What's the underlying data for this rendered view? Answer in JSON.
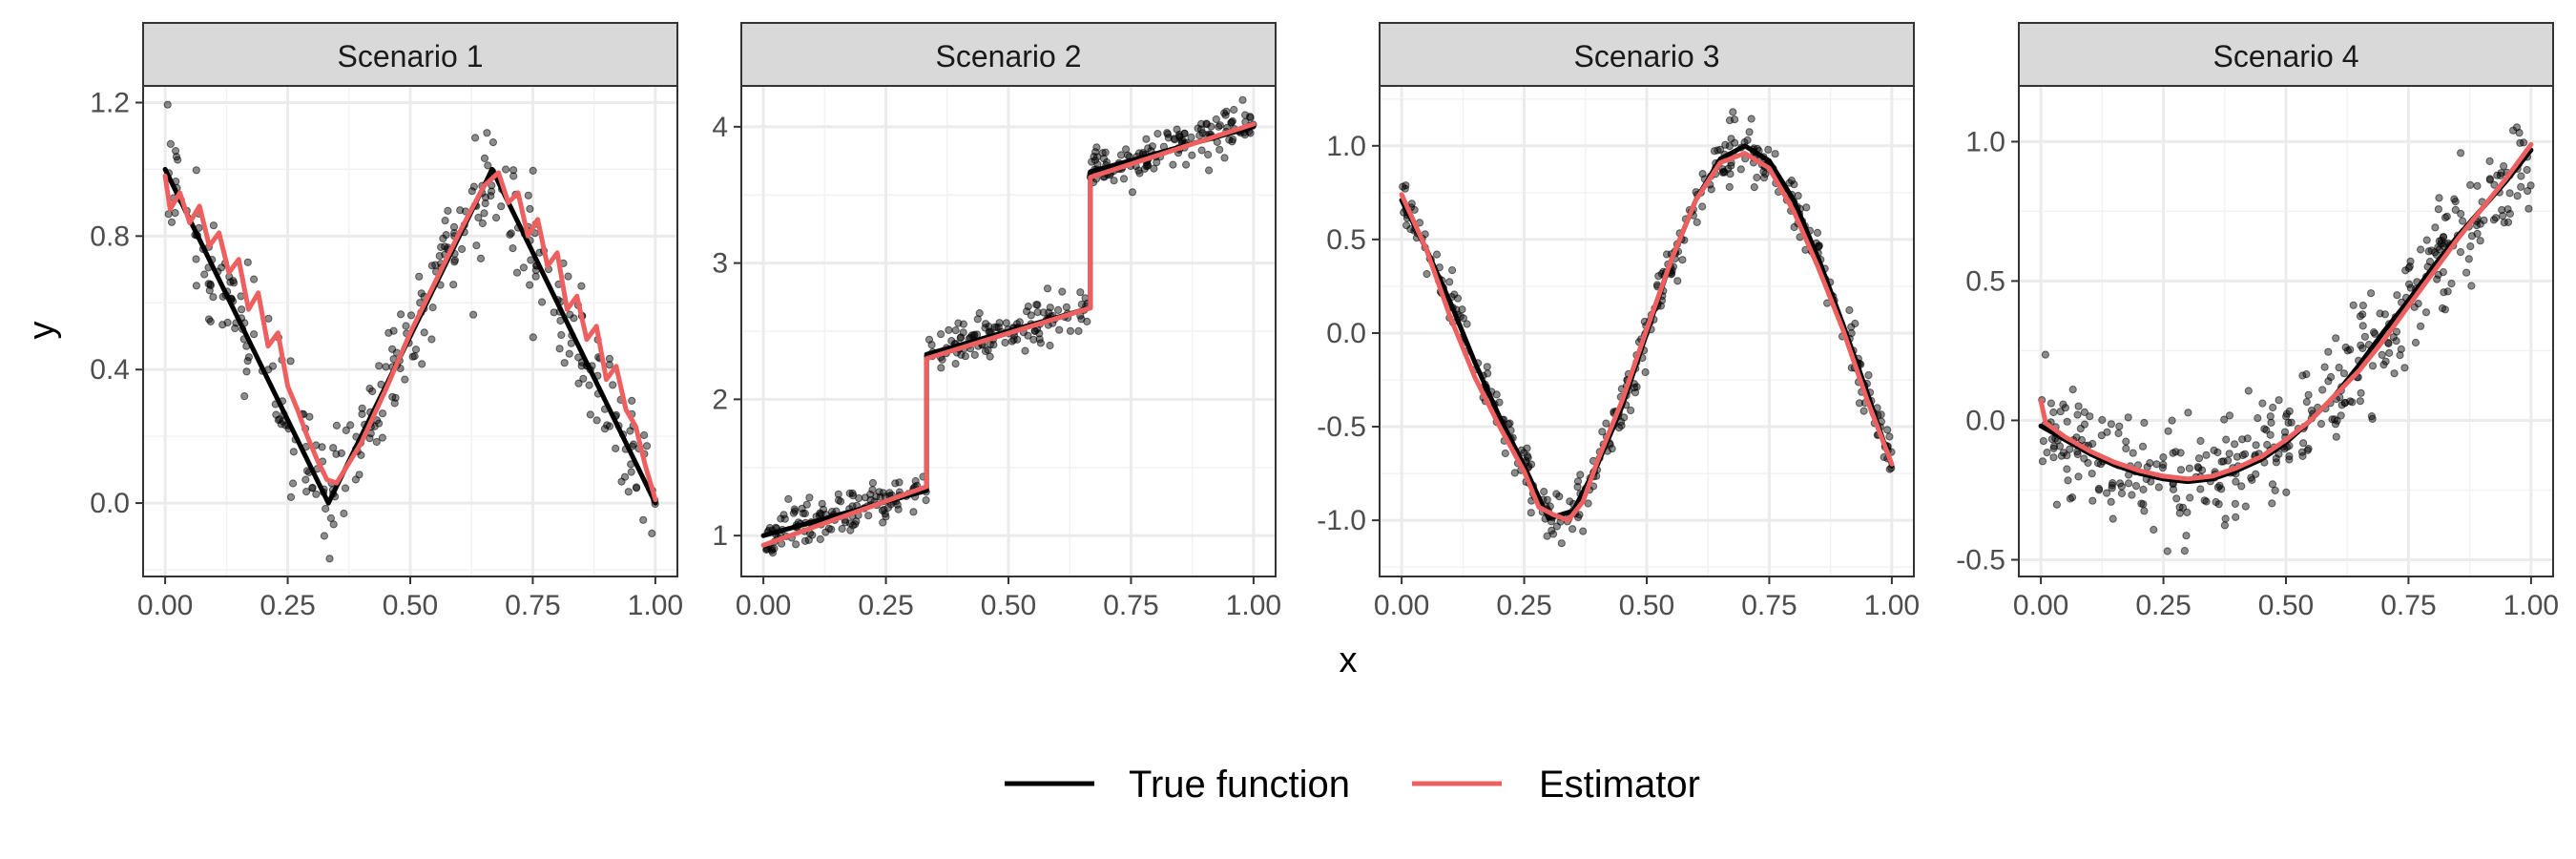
{
  "colors": {
    "true_function": "#000000",
    "estimator": "#EE6060",
    "points": "#000000",
    "strip_fill": "#D9D9D9",
    "grid_major": "#EBEBEB",
    "panel_border": "#333333"
  },
  "chart_data": {
    "type": "line",
    "xlabel": "x",
    "ylabel": "y",
    "legend": {
      "position": "bottom",
      "entries": [
        {
          "label": "True function",
          "color": "#000000"
        },
        {
          "label": "Estimator",
          "color": "#EE6060"
        }
      ]
    },
    "grid": true,
    "panels": [
      {
        "strip": "Scenario 1",
        "xlim": [
          -0.045,
          1.045
        ],
        "ylim": [
          -0.22,
          1.25
        ],
        "xticks": [
          0,
          0.25,
          0.5,
          0.75,
          1
        ],
        "xtick_labels": [
          "0.00",
          "0.25",
          "0.50",
          "0.75",
          "1.00"
        ],
        "yticks": [
          0,
          0.4,
          0.8,
          1.2
        ],
        "ytick_labels": [
          "0.0",
          "0.4",
          "0.8",
          "1.2"
        ],
        "points": {
          "n": 340,
          "noise_sd": 0.085,
          "seed": 11
        },
        "series": [
          {
            "name": "True function",
            "x": [
              0,
              0.333,
              0.667,
              1
            ],
            "y": [
              1,
              0,
              1,
              0
            ]
          },
          {
            "name": "Estimator",
            "x": [
              0,
              0.01,
              0.03,
              0.05,
              0.07,
              0.09,
              0.11,
              0.13,
              0.15,
              0.17,
              0.19,
              0.21,
              0.23,
              0.25,
              0.27,
              0.29,
              0.31,
              0.33,
              0.35,
              0.4,
              0.45,
              0.5,
              0.55,
              0.6,
              0.65,
              0.68,
              0.7,
              0.72,
              0.74,
              0.76,
              0.78,
              0.8,
              0.82,
              0.84,
              0.86,
              0.88,
              0.9,
              0.92,
              0.94,
              0.96,
              0.98,
              1.0
            ],
            "y": [
              0.98,
              0.88,
              0.93,
              0.84,
              0.89,
              0.77,
              0.81,
              0.69,
              0.73,
              0.58,
              0.63,
              0.47,
              0.51,
              0.35,
              0.28,
              0.2,
              0.13,
              0.07,
              0.06,
              0.18,
              0.34,
              0.51,
              0.66,
              0.81,
              0.95,
              0.99,
              0.9,
              0.93,
              0.8,
              0.85,
              0.71,
              0.75,
              0.58,
              0.62,
              0.49,
              0.53,
              0.37,
              0.41,
              0.28,
              0.23,
              0.11,
              0.01
            ]
          }
        ]
      },
      {
        "strip": "Scenario 2",
        "xlim": [
          -0.045,
          1.045
        ],
        "ylim": [
          0.7,
          4.3
        ],
        "xticks": [
          0,
          0.25,
          0.5,
          0.75,
          1
        ],
        "xtick_labels": [
          "0.00",
          "0.25",
          "0.50",
          "0.75",
          "1.00"
        ],
        "yticks": [
          1,
          2,
          3,
          4
        ],
        "ytick_labels": [
          "1",
          "2",
          "3",
          "4"
        ],
        "points": {
          "n": 400,
          "noise_sd": 0.08,
          "seed": 23
        },
        "series": [
          {
            "name": "True function",
            "x": [
              0,
              0.333,
              0.333,
              0.667,
              0.667,
              1
            ],
            "y": [
              1,
              1.33,
              2.33,
              2.67,
              3.67,
              4
            ]
          },
          {
            "name": "Estimator",
            "x": [
              0,
              0.333,
              0.333,
              0.667,
              0.667,
              1
            ],
            "y": [
              0.93,
              1.36,
              2.3,
              2.67,
              3.63,
              4.02
            ]
          }
        ]
      },
      {
        "strip": "Scenario 3",
        "xlim": [
          -0.045,
          1.045
        ],
        "ylim": [
          -1.3,
          1.32
        ],
        "xticks": [
          0,
          0.25,
          0.5,
          0.75,
          1
        ],
        "xtick_labels": [
          "0.00",
          "0.25",
          "0.50",
          "0.75",
          "1.00"
        ],
        "yticks": [
          -1,
          -0.5,
          0,
          0.5,
          1
        ],
        "ytick_labels": [
          "-1.0",
          "-0.5",
          "0.0",
          "0.5",
          "1.0"
        ],
        "points": {
          "n": 400,
          "noise_sd": 0.07,
          "seed": 37
        },
        "series": [
          {
            "name": "True function",
            "x": [
              0,
              0.05,
              0.1,
              0.15,
              0.2,
              0.25,
              0.3,
              0.35,
              0.4,
              0.45,
              0.5,
              0.55,
              0.6,
              0.65,
              0.7,
              0.75,
              0.8,
              0.85,
              0.9,
              0.95,
              1.0
            ],
            "y": [
              0.71,
              0.45,
              0.16,
              -0.16,
              -0.45,
              -0.71,
              -0.99,
              -0.95,
              -0.7,
              -0.39,
              0.0,
              0.39,
              0.71,
              0.93,
              1.0,
              0.92,
              0.71,
              0.4,
              0.05,
              -0.32,
              -0.71
            ]
          },
          {
            "name": "Estimator",
            "x": [
              0,
              0.05,
              0.1,
              0.15,
              0.2,
              0.25,
              0.28,
              0.31,
              0.34,
              0.37,
              0.4,
              0.45,
              0.5,
              0.55,
              0.6,
              0.65,
              0.7,
              0.75,
              0.8,
              0.85,
              0.9,
              0.95,
              1.0
            ],
            "y": [
              0.74,
              0.45,
              0.08,
              -0.24,
              -0.5,
              -0.74,
              -0.93,
              -0.97,
              -1.0,
              -0.9,
              -0.68,
              -0.36,
              0.02,
              0.39,
              0.71,
              0.91,
              0.96,
              0.88,
              0.65,
              0.35,
              0.02,
              -0.36,
              -0.7
            ]
          }
        ]
      },
      {
        "strip": "Scenario 4",
        "xlim": [
          -0.045,
          1.045
        ],
        "ylim": [
          -0.56,
          1.2
        ],
        "xticks": [
          0,
          0.25,
          0.5,
          0.75,
          1
        ],
        "xtick_labels": [
          "0.00",
          "0.25",
          "0.50",
          "0.75",
          "1.00"
        ],
        "yticks": [
          -0.5,
          0,
          0.5,
          1
        ],
        "ytick_labels": [
          "-0.5",
          "0.0",
          "0.5",
          "1.0"
        ],
        "points": {
          "n": 400,
          "noise_sd": 0.1,
          "seed": 51
        },
        "series": [
          {
            "name": "True function",
            "x": [
              0,
              0.05,
              0.1,
              0.15,
              0.2,
              0.25,
              0.3,
              0.35,
              0.4,
              0.45,
              0.5,
              0.55,
              0.6,
              0.65,
              0.7,
              0.75,
              0.8,
              0.85,
              0.9,
              0.95,
              1.0
            ],
            "y": [
              -0.02,
              -0.07,
              -0.12,
              -0.16,
              -0.19,
              -0.21,
              -0.22,
              -0.21,
              -0.18,
              -0.14,
              -0.08,
              0.0,
              0.09,
              0.2,
              0.32,
              0.43,
              0.55,
              0.66,
              0.76,
              0.86,
              0.97
            ]
          },
          {
            "name": "Estimator",
            "x": [
              0,
              0.01,
              0.05,
              0.1,
              0.15,
              0.2,
              0.25,
              0.3,
              0.35,
              0.4,
              0.45,
              0.5,
              0.55,
              0.6,
              0.65,
              0.7,
              0.75,
              0.8,
              0.85,
              0.9,
              0.95,
              1.0
            ],
            "y": [
              0.07,
              -0.01,
              -0.06,
              -0.11,
              -0.15,
              -0.18,
              -0.2,
              -0.21,
              -0.2,
              -0.17,
              -0.13,
              -0.07,
              0.0,
              0.09,
              0.18,
              0.29,
              0.41,
              0.53,
              0.65,
              0.76,
              0.87,
              0.99
            ]
          }
        ]
      }
    ]
  }
}
